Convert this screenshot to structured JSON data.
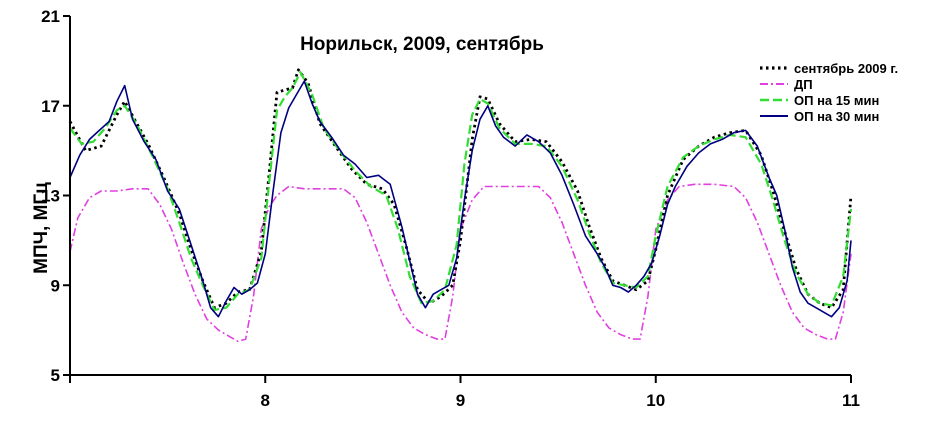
{
  "chart_data": {
    "type": "line",
    "title": "Норильск, 2009, сентябрь",
    "xlabel": "",
    "ylabel": "МПЧ, МГц",
    "xlim": [
      7,
      11
    ],
    "ylim": [
      5,
      21
    ],
    "x_ticks": [
      7,
      8,
      9,
      10,
      11
    ],
    "x_tick_labels": [
      "",
      "8",
      "9",
      "10",
      "11"
    ],
    "y_ticks": [
      5,
      9,
      13,
      17,
      21
    ],
    "y_tick_labels": [
      "5",
      "9",
      "13",
      "17",
      "21"
    ],
    "grid": false,
    "legend_position": "top-right",
    "colors": {
      "observed": "#000000",
      "dp": "#e040e0",
      "op15": "#33dd33",
      "op30": "#000080"
    },
    "series": [
      {
        "name": "сентябрь 2009 г.",
        "style": "dotted",
        "x": [
          7.0,
          7.08,
          7.16,
          7.24,
          7.28,
          7.33,
          7.4,
          7.48,
          7.56,
          7.62,
          7.68,
          7.74,
          7.8,
          7.86,
          7.92,
          7.98,
          8.02,
          8.06,
          8.1,
          8.14,
          8.17,
          8.22,
          8.28,
          8.36,
          8.44,
          8.52,
          8.6,
          8.66,
          8.72,
          8.78,
          8.84,
          8.9,
          8.96,
          9.0,
          9.06,
          9.1,
          9.14,
          9.2,
          9.28,
          9.36,
          9.44,
          9.52,
          9.6,
          9.66,
          9.72,
          9.78,
          9.84,
          9.9,
          9.96,
          10.0,
          10.06,
          10.14,
          10.22,
          10.3,
          10.38,
          10.46,
          10.54,
          10.6,
          10.66,
          10.72,
          10.78,
          10.84,
          10.9,
          10.96,
          11.0
        ],
        "y": [
          16.3,
          15.0,
          15.2,
          16.6,
          17.2,
          16.4,
          15.3,
          13.8,
          12.2,
          10.6,
          9.2,
          8.0,
          8.2,
          8.7,
          8.8,
          10.5,
          14.0,
          17.6,
          17.7,
          17.8,
          18.6,
          18.0,
          16.2,
          15.2,
          14.2,
          13.5,
          13.3,
          12.6,
          10.8,
          8.8,
          8.2,
          8.5,
          9.0,
          11.0,
          15.5,
          17.4,
          17.3,
          16.2,
          15.4,
          15.5,
          15.4,
          14.5,
          13.2,
          11.6,
          10.2,
          9.2,
          9.0,
          8.8,
          9.2,
          10.6,
          13.0,
          14.6,
          15.2,
          15.6,
          15.8,
          15.9,
          14.8,
          13.2,
          11.4,
          9.7,
          8.6,
          8.2,
          8.0,
          8.8,
          13.0
        ]
      },
      {
        "name": "ДП",
        "style": "dashdot",
        "x": [
          7.0,
          7.04,
          7.1,
          7.16,
          7.24,
          7.32,
          7.4,
          7.46,
          7.52,
          7.58,
          7.64,
          7.7,
          7.76,
          7.82,
          7.86,
          7.9,
          7.94,
          7.98,
          8.02,
          8.06,
          8.12,
          8.2,
          8.3,
          8.4,
          8.46,
          8.52,
          8.58,
          8.64,
          8.7,
          8.76,
          8.82,
          8.88,
          8.92,
          8.96,
          9.0,
          9.06,
          9.12,
          9.2,
          9.3,
          9.4,
          9.46,
          9.52,
          9.58,
          9.64,
          9.7,
          9.76,
          9.82,
          9.88,
          9.92,
          9.96,
          10.0,
          10.06,
          10.12,
          10.2,
          10.3,
          10.4,
          10.46,
          10.52,
          10.58,
          10.64,
          10.7,
          10.76,
          10.82,
          10.88,
          10.92,
          10.96,
          11.0
        ],
        "y": [
          10.5,
          12.0,
          12.9,
          13.2,
          13.2,
          13.3,
          13.3,
          12.6,
          11.5,
          10.0,
          8.6,
          7.5,
          7.0,
          6.7,
          6.5,
          6.6,
          8.5,
          11.5,
          12.5,
          13.0,
          13.4,
          13.3,
          13.3,
          13.3,
          12.9,
          11.8,
          10.4,
          9.0,
          7.8,
          7.1,
          6.8,
          6.6,
          6.6,
          8.5,
          11.5,
          12.8,
          13.4,
          13.4,
          13.4,
          13.4,
          12.9,
          11.8,
          10.4,
          9.0,
          7.8,
          7.1,
          6.8,
          6.6,
          6.6,
          8.5,
          11.5,
          12.8,
          13.4,
          13.5,
          13.5,
          13.4,
          12.9,
          11.8,
          10.4,
          9.0,
          7.8,
          7.1,
          6.8,
          6.6,
          6.6,
          7.8,
          10.4
        ]
      },
      {
        "name": "ОП на 15 мин",
        "style": "dashed",
        "x": [
          7.0,
          7.06,
          7.12,
          7.18,
          7.24,
          7.28,
          7.34,
          7.42,
          7.5,
          7.56,
          7.62,
          7.68,
          7.74,
          7.8,
          7.86,
          7.92,
          7.98,
          8.02,
          8.06,
          8.1,
          8.14,
          8.18,
          8.24,
          8.3,
          8.38,
          8.46,
          8.54,
          8.62,
          8.68,
          8.74,
          8.8,
          8.86,
          8.92,
          8.98,
          9.02,
          9.06,
          9.1,
          9.14,
          9.2,
          9.28,
          9.36,
          9.44,
          9.52,
          9.6,
          9.66,
          9.72,
          9.78,
          9.84,
          9.9,
          9.96,
          10.0,
          10.06,
          10.14,
          10.22,
          10.3,
          10.38,
          10.46,
          10.54,
          10.6,
          10.66,
          10.72,
          10.78,
          10.84,
          10.9,
          10.96,
          11.0
        ],
        "y": [
          16.0,
          15.3,
          15.4,
          16.0,
          16.8,
          17.0,
          16.2,
          14.8,
          13.3,
          11.8,
          10.2,
          9.0,
          7.9,
          8.0,
          8.6,
          8.8,
          10.2,
          13.6,
          16.8,
          17.4,
          17.8,
          18.5,
          17.5,
          16.0,
          15.0,
          14.1,
          13.4,
          13.0,
          11.5,
          9.4,
          8.2,
          8.3,
          8.8,
          10.8,
          14.4,
          16.6,
          17.3,
          17.1,
          16.0,
          15.3,
          15.3,
          15.2,
          14.3,
          12.8,
          11.3,
          10.0,
          9.1,
          9.0,
          8.9,
          9.4,
          11.2,
          13.4,
          14.7,
          15.2,
          15.5,
          15.7,
          15.6,
          14.4,
          12.8,
          11.0,
          9.5,
          8.6,
          8.2,
          8.1,
          9.4,
          12.4
        ]
      },
      {
        "name": "ОП на 30 мин",
        "style": "solid",
        "x": [
          7.0,
          7.05,
          7.1,
          7.15,
          7.2,
          7.24,
          7.28,
          7.32,
          7.38,
          7.44,
          7.5,
          7.56,
          7.62,
          7.68,
          7.72,
          7.76,
          7.8,
          7.84,
          7.88,
          7.92,
          7.96,
          8.0,
          8.04,
          8.08,
          8.12,
          8.16,
          8.2,
          8.24,
          8.28,
          8.34,
          8.4,
          8.46,
          8.52,
          8.58,
          8.64,
          8.7,
          8.74,
          8.78,
          8.82,
          8.86,
          8.9,
          8.94,
          8.98,
          9.02,
          9.06,
          9.1,
          9.14,
          9.18,
          9.22,
          9.28,
          9.34,
          9.4,
          9.46,
          9.52,
          9.58,
          9.64,
          9.7,
          9.74,
          9.78,
          9.82,
          9.86,
          9.9,
          9.94,
          9.98,
          10.02,
          10.06,
          10.1,
          10.16,
          10.22,
          10.28,
          10.34,
          10.4,
          10.46,
          10.52,
          10.58,
          10.62,
          10.66,
          10.7,
          10.74,
          10.78,
          10.82,
          10.86,
          10.9,
          10.94,
          10.98,
          11.0
        ],
        "y": [
          13.8,
          14.8,
          15.5,
          15.9,
          16.3,
          17.2,
          17.9,
          16.4,
          15.4,
          14.6,
          13.2,
          12.4,
          10.8,
          9.2,
          8.0,
          7.6,
          8.3,
          8.9,
          8.6,
          8.8,
          9.1,
          10.4,
          13.2,
          15.8,
          16.9,
          17.5,
          18.1,
          17.1,
          16.3,
          15.6,
          14.8,
          14.4,
          13.8,
          13.9,
          13.5,
          11.6,
          10.1,
          8.6,
          8.0,
          8.6,
          8.8,
          9.0,
          10.2,
          12.8,
          15.0,
          16.4,
          17.0,
          16.1,
          15.6,
          15.2,
          15.7,
          15.4,
          14.9,
          13.9,
          12.6,
          11.2,
          10.4,
          9.8,
          9.0,
          8.9,
          8.7,
          9.0,
          9.4,
          10.0,
          11.2,
          12.6,
          13.4,
          14.3,
          14.9,
          15.3,
          15.5,
          15.8,
          15.9,
          15.2,
          13.8,
          13.0,
          11.5,
          9.8,
          8.7,
          8.2,
          8.0,
          7.8,
          7.6,
          8.0,
          9.2,
          11.0
        ]
      }
    ]
  }
}
